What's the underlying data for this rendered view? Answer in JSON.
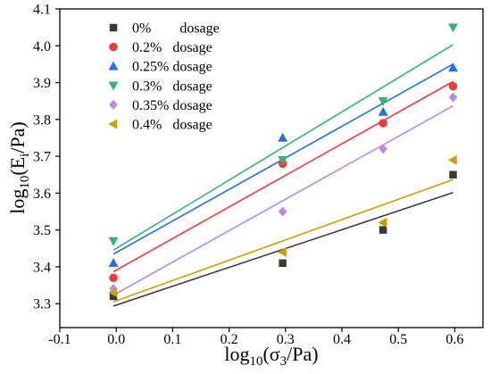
{
  "chart_data": {
    "type": "scatter",
    "xlabel": [
      {
        "text": "log"
      },
      {
        "text": "10",
        "sub": true
      },
      {
        "text": "(σ"
      },
      {
        "text": "3",
        "sub": true
      },
      {
        "text": "/Pa)"
      }
    ],
    "ylabel": [
      {
        "text": "log"
      },
      {
        "text": "10",
        "sub": true
      },
      {
        "text": "(E"
      },
      {
        "text": "i",
        "sub": true
      },
      {
        "text": "/Pa)"
      }
    ],
    "xlim": [
      -0.1,
      0.65
    ],
    "ylim": [
      3.235,
      4.1
    ],
    "xticks": [
      {
        "value": -0.1,
        "label": "-0.1"
      },
      {
        "value": 0.0,
        "label": "0.0"
      },
      {
        "value": 0.1,
        "label": "0.1"
      },
      {
        "value": 0.2,
        "label": "0.2"
      },
      {
        "value": 0.3,
        "label": "0.3"
      },
      {
        "value": 0.4,
        "label": "0.4"
      },
      {
        "value": 0.5,
        "label": "0.5"
      },
      {
        "value": 0.6,
        "label": "0.6"
      }
    ],
    "yticks": [
      {
        "value": 3.3,
        "label": "3.3"
      },
      {
        "value": 3.4,
        "label": "3.4"
      },
      {
        "value": 3.5,
        "label": "3.5"
      },
      {
        "value": 3.6,
        "label": "3.6"
      },
      {
        "value": 3.7,
        "label": "3.7"
      },
      {
        "value": 3.8,
        "label": "3.8"
      },
      {
        "value": 3.9,
        "label": "3.9"
      },
      {
        "value": 4.0,
        "label": "4.0"
      },
      {
        "value": 4.1,
        "label": "4.1"
      }
    ],
    "grid": false,
    "legend": "top-left",
    "trendline": "linear",
    "x": [
      -0.005,
      0.295,
      0.473,
      0.597
    ],
    "series": [
      {
        "name": "0%        dosage",
        "marker": "square",
        "color": "#3a3a3a",
        "values": [
          3.32,
          3.41,
          3.5,
          3.65
        ]
      },
      {
        "name": "0.2%   dosage",
        "marker": "circle",
        "color": "#ee3a3a",
        "values": [
          3.37,
          3.68,
          3.79,
          3.89
        ]
      },
      {
        "name": "0.25% dosage",
        "marker": "triangle-up",
        "color": "#2470e4",
        "values": [
          3.41,
          3.75,
          3.82,
          3.94
        ]
      },
      {
        "name": "0.3%   dosage",
        "marker": "triangle-down",
        "color": "#33b571",
        "values": [
          3.47,
          3.69,
          3.85,
          4.05
        ]
      },
      {
        "name": "0.35% dosage",
        "marker": "diamond",
        "color": "#b68ae6",
        "values": [
          3.34,
          3.55,
          3.72,
          3.86
        ]
      },
      {
        "name": "0.4%   dosage",
        "marker": "triangle-left",
        "color": "#c8a000",
        "values": [
          3.33,
          3.44,
          3.52,
          3.69
        ]
      }
    ]
  }
}
